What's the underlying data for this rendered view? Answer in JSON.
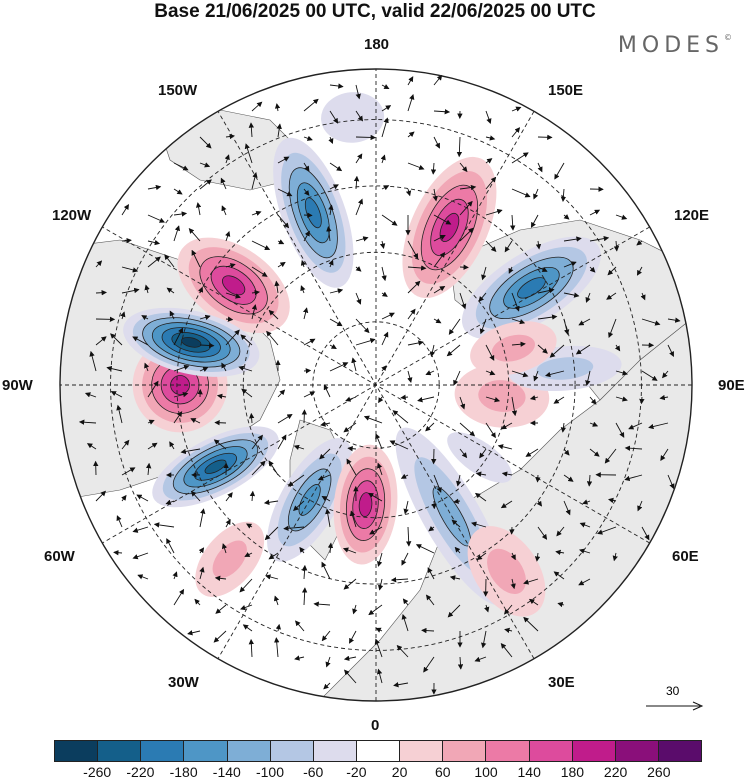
{
  "title": "Base 21/06/2025 00 UTC, valid 22/06/2025 00 UTC",
  "brand": "MODES",
  "brand_mark": "©",
  "longitude_labels": {
    "top": "180",
    "bottom": "0",
    "left": "90W",
    "right": "90E",
    "upper_left_1": "150W",
    "upper_left_2": "120W",
    "upper_right_1": "150E",
    "upper_right_2": "120E",
    "lower_left_1": "60W",
    "lower_left_2": "30W",
    "lower_right_1": "60E",
    "lower_right_2": "30E"
  },
  "reference_vector": {
    "value": "30"
  },
  "colorbar": {
    "colors": [
      "#0b3d5e",
      "#145f8a",
      "#2b7bb3",
      "#4e96c6",
      "#7eaed6",
      "#b4c7e4",
      "#dddced",
      "#ffffff",
      "#f6d0d4",
      "#f1a7b6",
      "#ec7aa6",
      "#dd4b9d",
      "#c01c8b",
      "#8a0f7a",
      "#5a0c6b"
    ],
    "ticks": [
      "-260",
      "-220",
      "-180",
      "-140",
      "-100",
      "-60",
      "-20",
      "20",
      "60",
      "100",
      "140",
      "180",
      "220",
      "260"
    ]
  },
  "anomaly_centers": [
    {
      "lon_deg": 200,
      "dist": 0.58,
      "value": -200,
      "rx": 0.1,
      "ry": 0.25
    },
    {
      "lon_deg": 155,
      "dist": 0.55,
      "value": 200,
      "rx": 0.12,
      "ry": 0.24
    },
    {
      "lon_deg": 122,
      "dist": 0.58,
      "value": -180,
      "rx": 0.11,
      "ry": 0.25
    },
    {
      "lon_deg": 235,
      "dist": 0.55,
      "value": 200,
      "rx": 0.12,
      "ry": 0.2
    },
    {
      "lon_deg": 270,
      "dist": 0.62,
      "value": 200,
      "rx": 0.15,
      "ry": 0.15
    },
    {
      "lon_deg": 257,
      "dist": 0.6,
      "value": -260,
      "rx": 0.1,
      "ry": 0.22
    },
    {
      "lon_deg": 297,
      "dist": 0.57,
      "value": -240,
      "rx": 0.09,
      "ry": 0.22
    },
    {
      "lon_deg": 330,
      "dist": 0.42,
      "value": -160,
      "rx": 0.09,
      "ry": 0.22
    },
    {
      "lon_deg": 355,
      "dist": 0.38,
      "value": 200,
      "rx": 0.1,
      "ry": 0.19
    },
    {
      "lon_deg": 30,
      "dist": 0.48,
      "value": -100,
      "rx": 0.09,
      "ry": 0.32
    },
    {
      "lon_deg": 55,
      "dist": 0.4,
      "value": -40,
      "rx": 0.05,
      "ry": 0.12
    },
    {
      "lon_deg": 85,
      "dist": 0.4,
      "value": 60,
      "rx": 0.1,
      "ry": 0.15
    },
    {
      "lon_deg": 95,
      "dist": 0.6,
      "value": -60,
      "rx": 0.07,
      "ry": 0.18
    },
    {
      "lon_deg": 105,
      "dist": 0.45,
      "value": 80,
      "rx": 0.08,
      "ry": 0.14
    },
    {
      "lon_deg": 320,
      "dist": 0.72,
      "value": 80,
      "rx": 0.08,
      "ry": 0.14
    },
    {
      "lon_deg": 35,
      "dist": 0.72,
      "value": 60,
      "rx": 0.1,
      "ry": 0.16
    },
    {
      "lon_deg": 185,
      "dist": 0.85,
      "value": -40,
      "rx": 0.1,
      "ry": 0.08
    }
  ]
}
